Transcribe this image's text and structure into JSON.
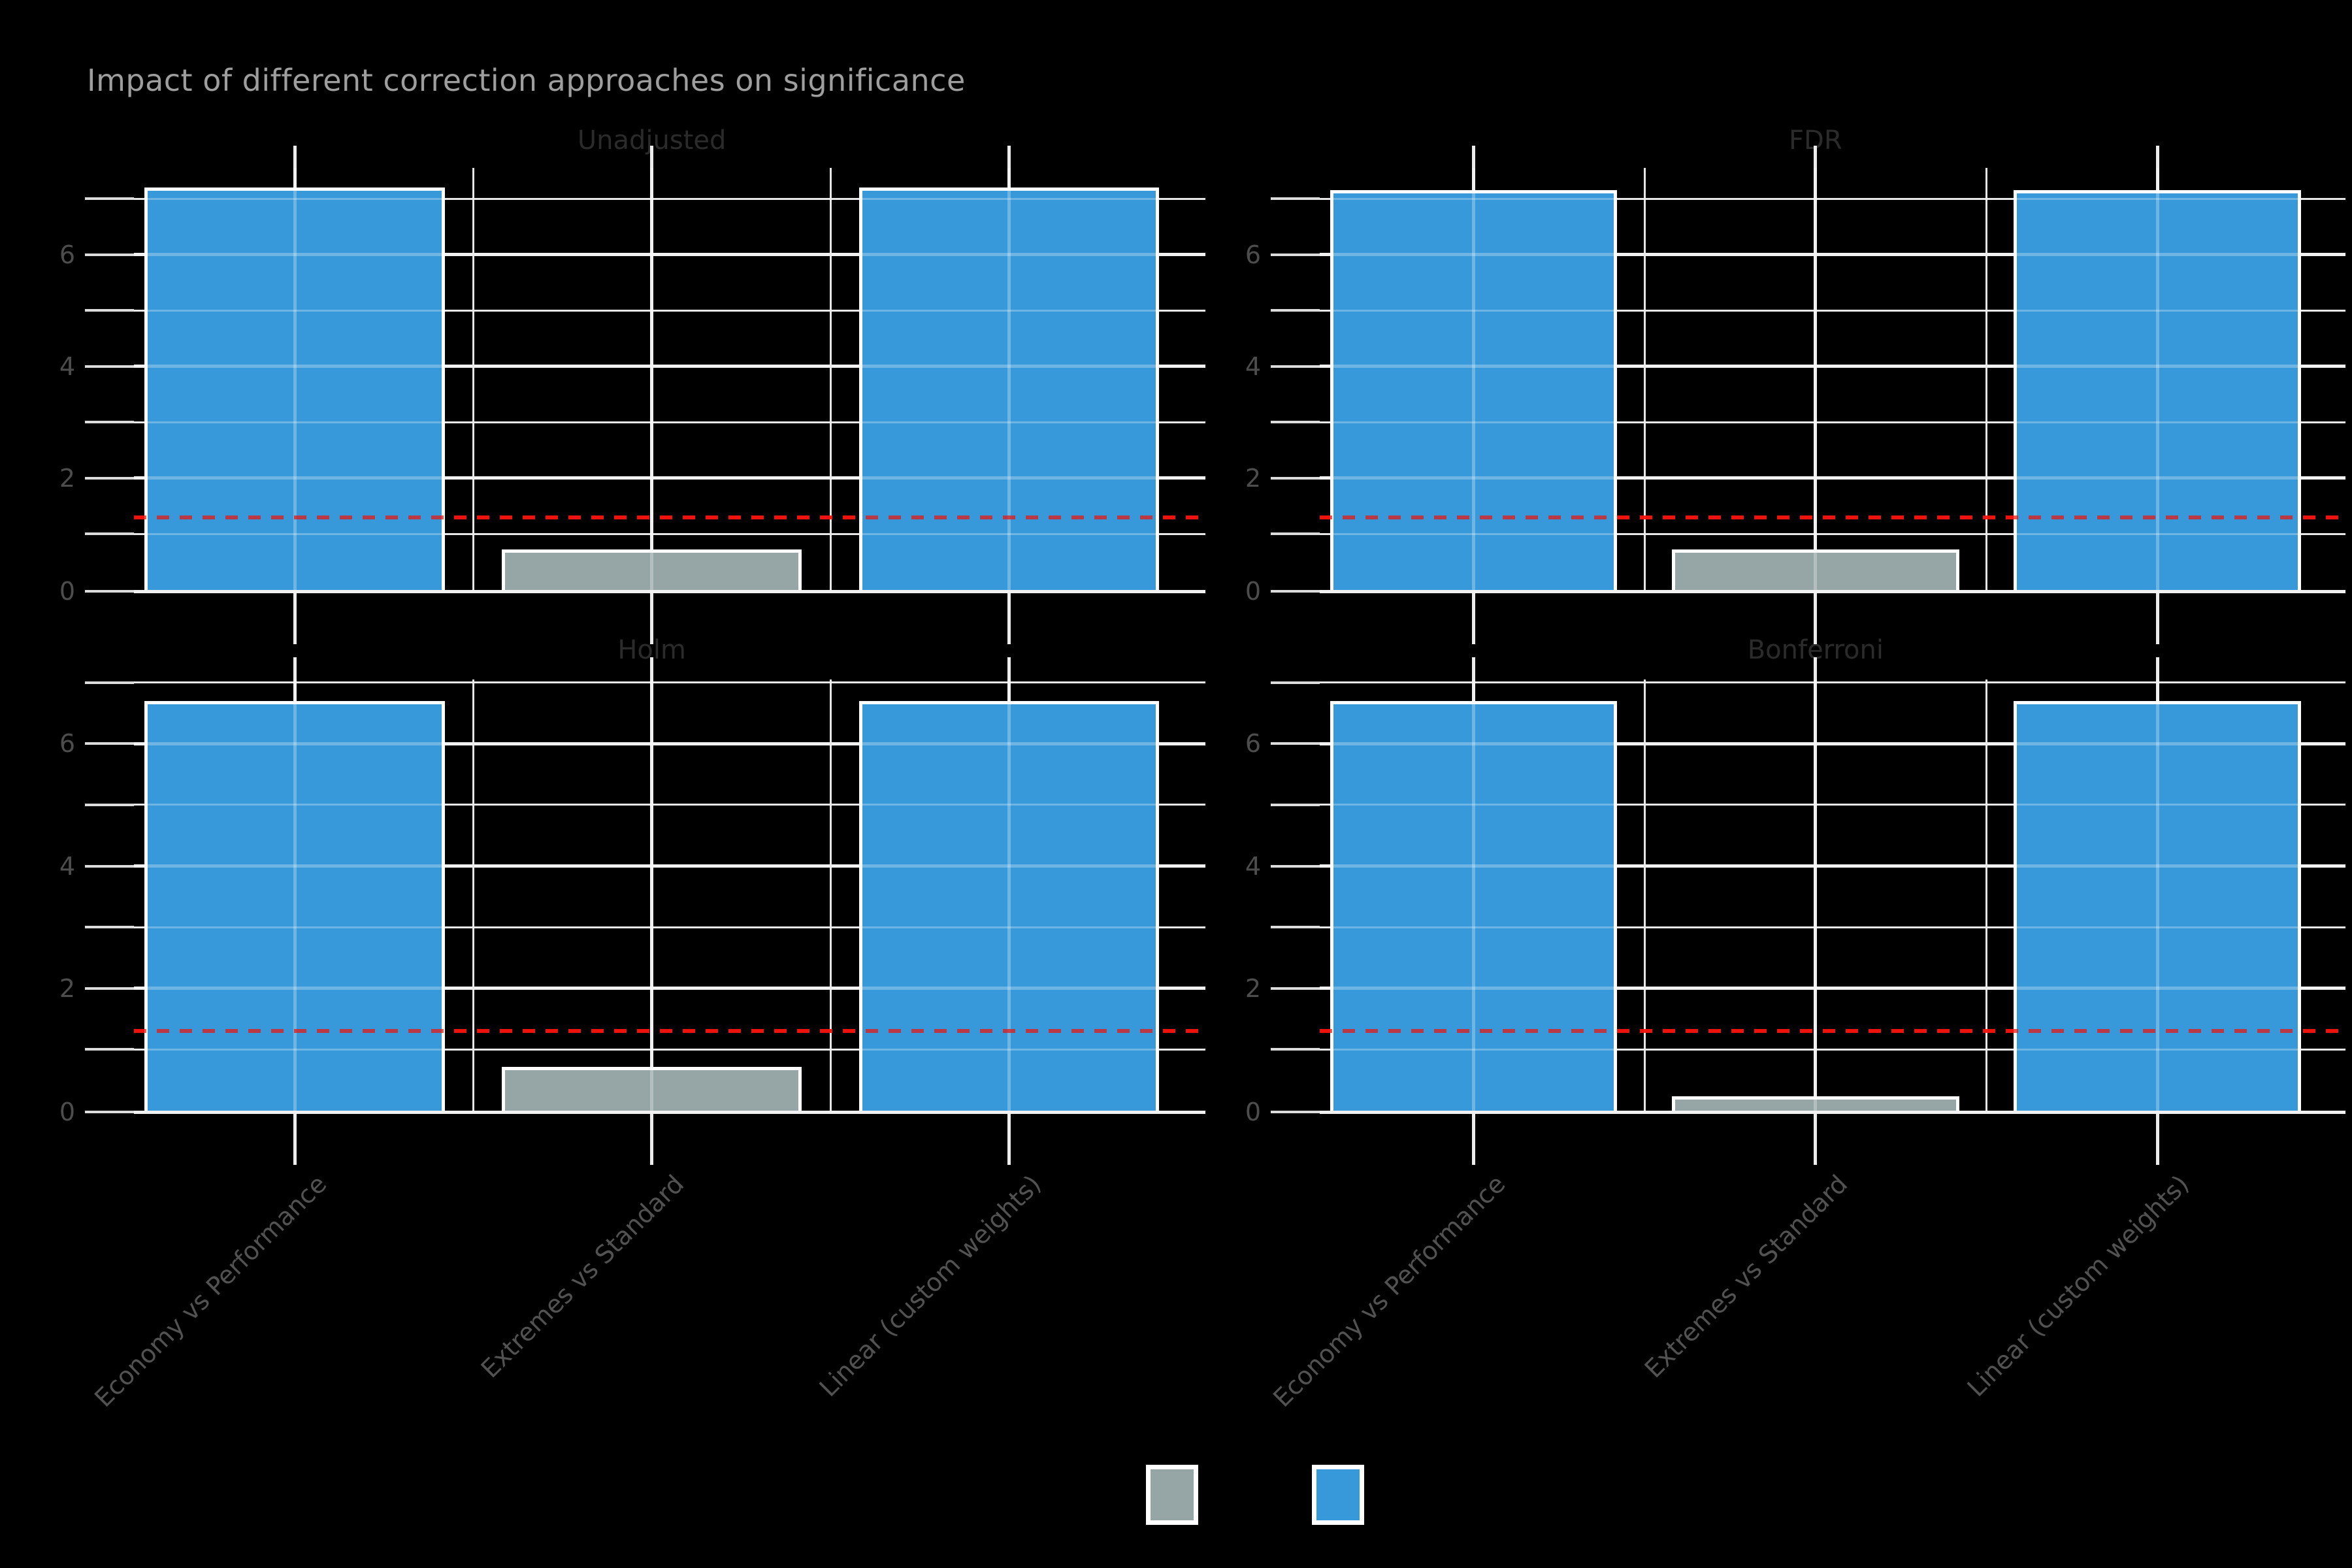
{
  "title": "Impact of different correction approaches on significance",
  "chart_data": {
    "type": "bar",
    "title": "Impact of different correction approaches on significance",
    "facet_layout": "2x2 grid",
    "categories": [
      "Economy vs Performance",
      "Extremes vs Standard",
      "Linear (custom weights)"
    ],
    "facets": [
      {
        "title": "Unadjusted",
        "values": [
          7.2,
          0.72,
          7.2
        ],
        "ylim": [
          0,
          7.55
        ]
      },
      {
        "title": "FDR",
        "values": [
          7.15,
          0.72,
          7.15
        ],
        "ylim": [
          0,
          7.55
        ]
      },
      {
        "title": "Holm",
        "values": [
          6.7,
          0.72,
          6.7
        ],
        "ylim": [
          0,
          7.05
        ]
      },
      {
        "title": "Bonferroni",
        "values": [
          6.7,
          0.24,
          6.7
        ],
        "ylim": [
          0,
          7.05
        ]
      }
    ],
    "ylabel_ticks": [
      "0",
      "2",
      "4",
      "6"
    ],
    "yticks_major": [
      0,
      2,
      4,
      6
    ],
    "yticks_minor": [
      1,
      3,
      5,
      7
    ],
    "threshold": {
      "value": 1.301,
      "color": "#ed120b",
      "style": "dashed"
    },
    "grid": {
      "on": true,
      "major_color": "#ececec",
      "minor_color": "#dedede"
    },
    "colors": {
      "bar_above_threshold": "#3899da",
      "bar_below_threshold": "#96a5a5",
      "bar_edge": "#ffffff",
      "background": "#000000",
      "title_text": "#9e9e9e",
      "strip_text": "#2b2b2b",
      "axis_text": "#4d4d4d"
    },
    "legend": {
      "position": "bottom-center",
      "swatches": [
        {
          "color": "#96a5a5"
        },
        {
          "color": "#3899da"
        }
      ]
    }
  }
}
